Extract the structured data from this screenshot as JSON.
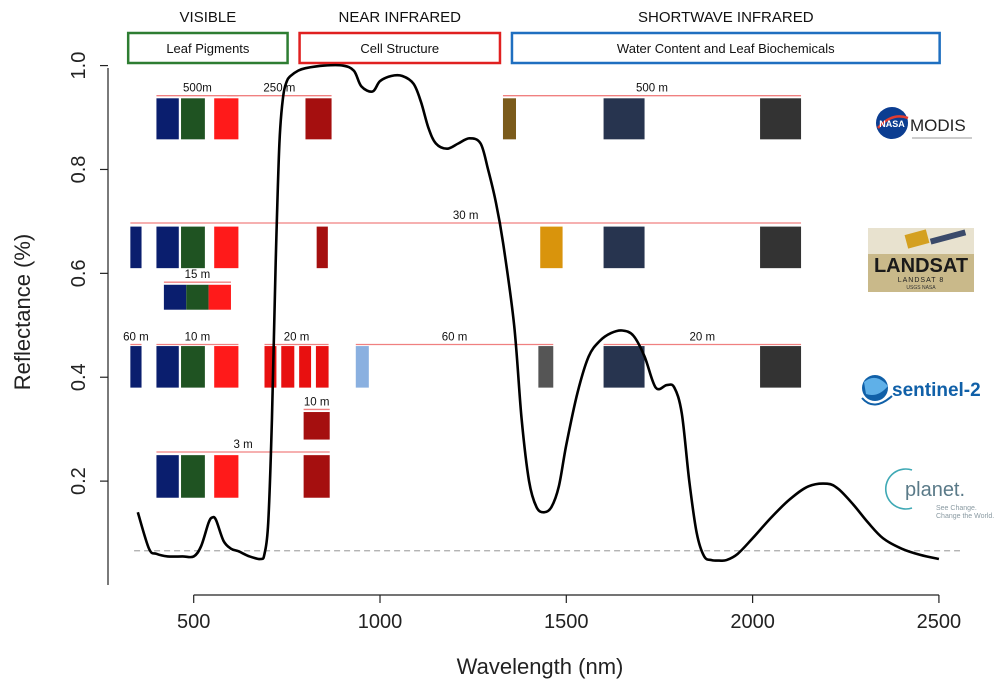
{
  "regions": [
    {
      "title": "VISIBLE",
      "sub": "Leaf Pigments",
      "color": "#2e7d32",
      "x0": 300,
      "x1": 760
    },
    {
      "title": "NEAR INFRARED",
      "sub": "Cell Structure",
      "color": "#e02020",
      "x0": 760,
      "x1": 1330
    },
    {
      "title": "SHORTWAVE INFRARED",
      "sub": "Water Content and Leaf Biochemicals",
      "color": "#1f6fc0",
      "x0": 1330,
      "x1": 2510
    }
  ],
  "chart_data": {
    "type": "line",
    "xlabel": "Wavelength (nm)",
    "ylabel": "Reflectance (%)",
    "xlim": [
      270,
      2570
    ],
    "ylim": [
      0.0,
      1.03
    ],
    "xticks": [
      500,
      1000,
      1500,
      2000,
      2500
    ],
    "yticks": [
      0.2,
      0.4,
      0.6,
      0.8,
      1.0
    ],
    "ytick_labels": [
      "0.2",
      "0.4",
      "0.6",
      "0.8",
      "1.0"
    ],
    "baseline_dashed_y": 0.066,
    "series": [
      {
        "x": [
          350,
          380,
          400,
          430,
          470,
          500,
          520,
          540,
          550,
          560,
          580,
          600,
          620,
          650,
          680,
          690,
          700,
          710,
          720,
          730,
          740,
          750,
          760,
          780,
          800,
          850,
          900,
          930,
          950,
          980,
          1000,
          1030,
          1060,
          1090,
          1110,
          1130,
          1150,
          1180,
          1210,
          1240,
          1270,
          1290,
          1310,
          1330,
          1360,
          1380,
          1400,
          1420,
          1440,
          1460,
          1480,
          1500,
          1530,
          1560,
          1590,
          1620,
          1650,
          1680,
          1710,
          1740,
          1770,
          1790,
          1810,
          1830,
          1850,
          1870,
          1890,
          1910,
          1930,
          1960,
          2000,
          2050,
          2100,
          2150,
          2200,
          2230,
          2270,
          2310,
          2350,
          2400,
          2450,
          2500
        ],
        "y": [
          0.14,
          0.07,
          0.06,
          0.055,
          0.055,
          0.055,
          0.075,
          0.12,
          0.13,
          0.125,
          0.085,
          0.07,
          0.065,
          0.055,
          0.05,
          0.06,
          0.12,
          0.32,
          0.62,
          0.85,
          0.94,
          0.97,
          0.98,
          0.99,
          0.995,
          1.0,
          1.0,
          0.99,
          0.96,
          0.95,
          0.97,
          0.98,
          0.98,
          0.965,
          0.93,
          0.88,
          0.85,
          0.84,
          0.85,
          0.86,
          0.85,
          0.8,
          0.74,
          0.66,
          0.5,
          0.32,
          0.2,
          0.15,
          0.14,
          0.15,
          0.19,
          0.27,
          0.37,
          0.44,
          0.47,
          0.485,
          0.49,
          0.48,
          0.44,
          0.38,
          0.385,
          0.38,
          0.33,
          0.2,
          0.1,
          0.055,
          0.048,
          0.047,
          0.048,
          0.06,
          0.09,
          0.13,
          0.165,
          0.19,
          0.195,
          0.185,
          0.155,
          0.12,
          0.09,
          0.07,
          0.058,
          0.05
        ]
      }
    ]
  },
  "sensors": [
    {
      "logo": "MODIS",
      "logo_color": "#222222",
      "nasa_badge": "NASA",
      "bands": [
        {
          "x0": 400,
          "x1": 460,
          "ymin": 0.858,
          "ymax": 0.937,
          "color": "#0a1e6e"
        },
        {
          "x0": 466,
          "x1": 530,
          "ymin": 0.858,
          "ymax": 0.937,
          "color": "#1f5322"
        },
        {
          "x0": 555,
          "x1": 620,
          "ymin": 0.858,
          "ymax": 0.937,
          "color": "#ff1a1a"
        },
        {
          "x0": 800,
          "x1": 870,
          "ymin": 0.858,
          "ymax": 0.937,
          "color": "#a50f0f"
        },
        {
          "x0": 1330,
          "x1": 1365,
          "ymin": 0.858,
          "ymax": 0.937,
          "color": "#7b5b1b"
        },
        {
          "x0": 1600,
          "x1": 1710,
          "ymin": 0.858,
          "ymax": 0.937,
          "color": "#27344f"
        },
        {
          "x0": 2020,
          "x1": 2130,
          "ymin": 0.858,
          "ymax": 0.937,
          "color": "#333333"
        }
      ],
      "resolution_lines": [
        {
          "x0": 400,
          "x1": 620,
          "y": 0.942,
          "label": "500m"
        },
        {
          "x0": 590,
          "x1": 870,
          "y": 0.942,
          "label": "250 m"
        },
        {
          "x0": 1330,
          "x1": 2130,
          "y": 0.942,
          "label": "500 m"
        }
      ]
    },
    {
      "logo": "LANDSAT",
      "logo_sub": "LANDSAT 8",
      "logo_sub2": "USGS NASA",
      "logo_color": "#222222",
      "bands": [
        {
          "x0": 330,
          "x1": 360,
          "ymin": 0.61,
          "ymax": 0.69,
          "color": "#0a1e6e"
        },
        {
          "x0": 400,
          "x1": 460,
          "ymin": 0.61,
          "ymax": 0.69,
          "color": "#0a1e6e"
        },
        {
          "x0": 466,
          "x1": 530,
          "ymin": 0.61,
          "ymax": 0.69,
          "color": "#1f5322"
        },
        {
          "x0": 555,
          "x1": 620,
          "ymin": 0.61,
          "ymax": 0.69,
          "color": "#ff1a1a"
        },
        {
          "x0": 830,
          "x1": 860,
          "ymin": 0.61,
          "ymax": 0.69,
          "color": "#a50f0f"
        },
        {
          "x0": 1430,
          "x1": 1490,
          "ymin": 0.61,
          "ymax": 0.69,
          "color": "#d9940c"
        },
        {
          "x0": 1600,
          "x1": 1710,
          "ymin": 0.61,
          "ymax": 0.69,
          "color": "#27344f"
        },
        {
          "x0": 2020,
          "x1": 2130,
          "ymin": 0.61,
          "ymax": 0.69,
          "color": "#333333"
        },
        {
          "x0": 420,
          "x1": 480,
          "ymin": 0.53,
          "ymax": 0.578,
          "color": "#0a1e6e"
        },
        {
          "x0": 480,
          "x1": 540,
          "ymin": 0.53,
          "ymax": 0.578,
          "color": "#1f5322"
        },
        {
          "x0": 540,
          "x1": 600,
          "ymin": 0.53,
          "ymax": 0.578,
          "color": "#ff1a1a"
        }
      ],
      "resolution_lines": [
        {
          "x0": 330,
          "x1": 2130,
          "y": 0.697,
          "label": "30 m"
        },
        {
          "x0": 420,
          "x1": 600,
          "y": 0.583,
          "label": "15 m"
        }
      ]
    },
    {
      "logo": "sentinel-2",
      "logo_color": "#1060a8",
      "bands": [
        {
          "x0": 330,
          "x1": 360,
          "ymin": 0.38,
          "ymax": 0.46,
          "color": "#0a1e6e"
        },
        {
          "x0": 400,
          "x1": 460,
          "ymin": 0.38,
          "ymax": 0.46,
          "color": "#0a1e6e"
        },
        {
          "x0": 466,
          "x1": 530,
          "ymin": 0.38,
          "ymax": 0.46,
          "color": "#1f5322"
        },
        {
          "x0": 555,
          "x1": 620,
          "ymin": 0.38,
          "ymax": 0.46,
          "color": "#ff1a1a"
        },
        {
          "x0": 690,
          "x1": 722,
          "ymin": 0.38,
          "ymax": 0.46,
          "color": "#e81010"
        },
        {
          "x0": 735,
          "x1": 770,
          "ymin": 0.38,
          "ymax": 0.46,
          "color": "#e81010"
        },
        {
          "x0": 783,
          "x1": 815,
          "ymin": 0.38,
          "ymax": 0.46,
          "color": "#e81010"
        },
        {
          "x0": 828,
          "x1": 862,
          "ymin": 0.38,
          "ymax": 0.46,
          "color": "#e81010"
        },
        {
          "x0": 935,
          "x1": 970,
          "ymin": 0.38,
          "ymax": 0.46,
          "color": "#8ab0e0"
        },
        {
          "x0": 1425,
          "x1": 1465,
          "ymin": 0.38,
          "ymax": 0.46,
          "color": "#555555"
        },
        {
          "x0": 1600,
          "x1": 1710,
          "ymin": 0.38,
          "ymax": 0.46,
          "color": "#27344f"
        },
        {
          "x0": 2020,
          "x1": 2130,
          "ymin": 0.38,
          "ymax": 0.46,
          "color": "#333333"
        },
        {
          "x0": 795,
          "x1": 865,
          "ymin": 0.28,
          "ymax": 0.333,
          "color": "#a50f0f"
        }
      ],
      "resolution_lines": [
        {
          "x0": 330,
          "x1": 360,
          "y": 0.463,
          "label": "60 m"
        },
        {
          "x0": 400,
          "x1": 620,
          "y": 0.463,
          "label": "10 m"
        },
        {
          "x0": 690,
          "x1": 862,
          "y": 0.463,
          "label": "20 m"
        },
        {
          "x0": 935,
          "x1": 1465,
          "y": 0.463,
          "label": "60 m"
        },
        {
          "x0": 1600,
          "x1": 2130,
          "y": 0.463,
          "label": "20 m"
        },
        {
          "x0": 795,
          "x1": 865,
          "y": 0.338,
          "label": "10 m"
        }
      ]
    },
    {
      "logo": "planet.",
      "logo_sub": "See Change.",
      "logo_sub2": "Change the World.",
      "logo_color": "#5a7a88",
      "bands": [
        {
          "x0": 400,
          "x1": 460,
          "ymin": 0.168,
          "ymax": 0.25,
          "color": "#0a1e6e"
        },
        {
          "x0": 466,
          "x1": 530,
          "ymin": 0.168,
          "ymax": 0.25,
          "color": "#1f5322"
        },
        {
          "x0": 555,
          "x1": 620,
          "ymin": 0.168,
          "ymax": 0.25,
          "color": "#ff1a1a"
        },
        {
          "x0": 795,
          "x1": 865,
          "ymin": 0.168,
          "ymax": 0.25,
          "color": "#a50f0f"
        }
      ],
      "resolution_lines": [
        {
          "x0": 400,
          "x1": 865,
          "y": 0.256,
          "label": "3 m"
        }
      ]
    }
  ],
  "style": {
    "curve_color": "#000000",
    "res_line_color": "#f08080",
    "dash_color": "#aaaaaa",
    "axis_color": "#222222"
  }
}
